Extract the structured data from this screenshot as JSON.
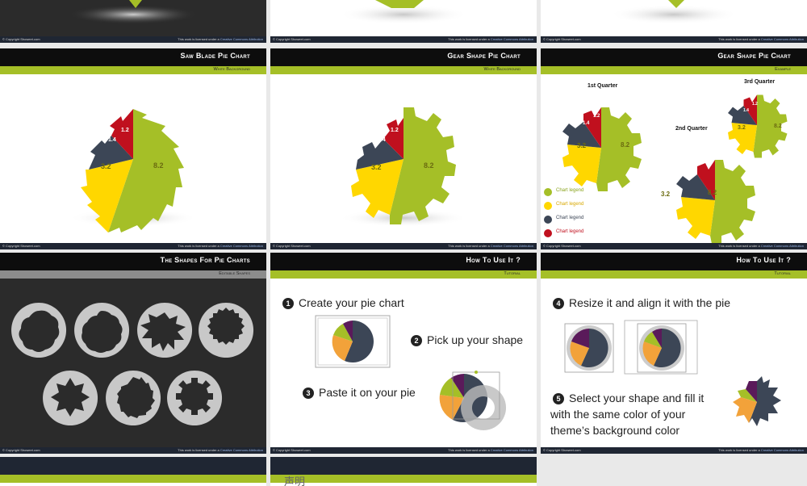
{
  "colors": {
    "green": "#a5bf27",
    "yellow": "#ffd700",
    "slate": "#3c4656",
    "red": "#c0101e",
    "header": "#0d0d0d",
    "footer": "#1f2633"
  },
  "footer": {
    "left": "© Copyright Showeet.com",
    "right_prefix": "This work is licensed under a",
    "right_link": "Creative Commons Attribution"
  },
  "slides": {
    "saw": {
      "title": "Saw Blade Pie Chart",
      "subtitle": "White Background"
    },
    "gear": {
      "title": "Gear Shape Pie Chart",
      "subtitle": "White Background"
    },
    "example": {
      "title": "Gear Shape Pie Chart",
      "subtitle": "Example",
      "q1": "1st Quarter",
      "q2": "2nd Quarter",
      "q3": "3rd Quarter",
      "legend": [
        "Chart legend",
        "Chart legend",
        "Chart legend",
        "Chart legend"
      ]
    },
    "shapes": {
      "title": "The Shapes For Pie Charts",
      "subtitle": "Editable Shapes"
    },
    "howto1": {
      "title": "How To Use It ?",
      "subtitle": "Tutorial",
      "step1": "Create your pie chart",
      "step2": "Pick up your shape",
      "step3": "Paste it on your pie",
      "n1": "1",
      "n2": "2",
      "n3": "3"
    },
    "howto2": {
      "title": "How To Use It ?",
      "subtitle": "Tutorial",
      "step4": "Resize it and align it with the pie",
      "step5_l1": "Select your shape and fill it",
      "step5_l2": "with the same color of your",
      "step5_l3": "theme’s background color",
      "n4": "4",
      "n5": "5"
    }
  },
  "chart_data": [
    {
      "type": "pie",
      "title": "",
      "categories": [
        "8.2",
        "3.2",
        "1.4",
        "1.2"
      ],
      "values": [
        8.2,
        3.2,
        1.4,
        1.2
      ]
    },
    {
      "type": "pie",
      "title": "",
      "categories": [
        "8.2",
        "3.2",
        "1.4",
        "1.2"
      ],
      "values": [
        8.2,
        3.2,
        1.4,
        1.2
      ]
    },
    {
      "type": "pie",
      "title": "1st Quarter",
      "values": [
        8.2,
        3.2,
        1.4,
        1.2
      ]
    },
    {
      "type": "pie",
      "title": "2nd Quarter",
      "values": [
        8.2,
        3.2,
        1.4,
        1.2
      ]
    },
    {
      "type": "pie",
      "title": "3rd Quarter",
      "values": [
        8.2,
        3.2,
        1.4,
        1.2
      ]
    }
  ],
  "bottom": {
    "cn_label": "声明"
  }
}
